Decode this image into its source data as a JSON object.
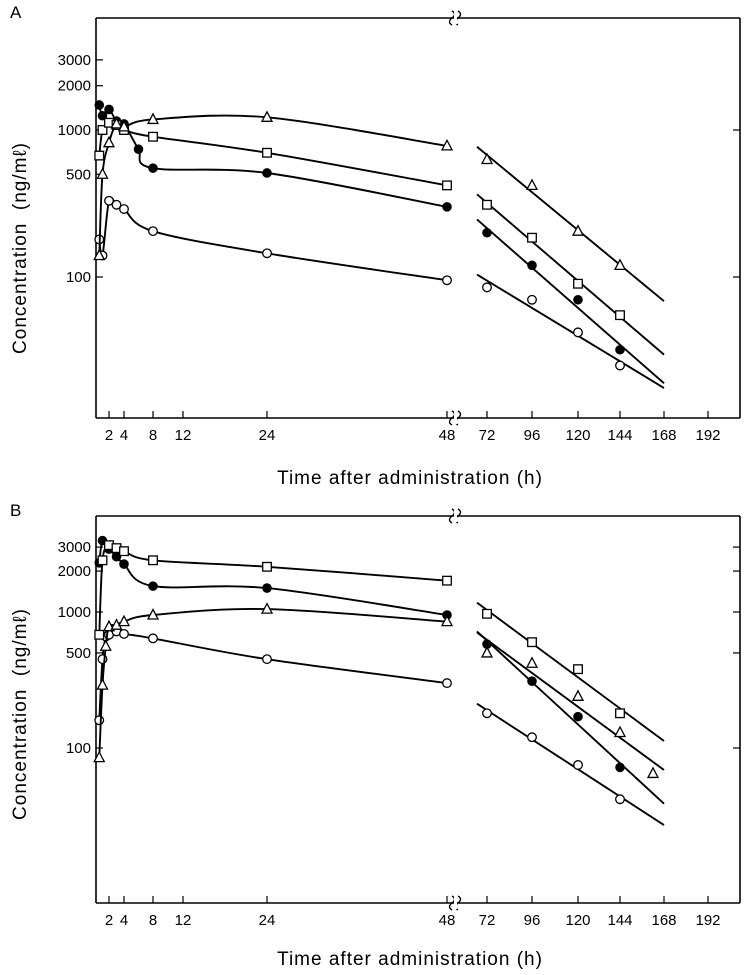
{
  "chart_data": [
    {
      "type": "scatter",
      "panel_label": "A",
      "xlabel": "Time after administration (h)",
      "ylabel": "Concentration  (ng/mℓ)",
      "y_scale": "log",
      "ylim": [
        15,
        6000
      ],
      "y_ticks_left": [
        "3000",
        "2000",
        "1000",
        "500",
        "100"
      ],
      "y_tick_values_left": [
        3000,
        2000,
        1000,
        500,
        100
      ],
      "y_ticks_right": [
        1000,
        100
      ],
      "x_tick_labels": [
        "2",
        "4",
        "8",
        "12",
        "24",
        "48",
        "72",
        "96",
        "120",
        "144",
        "168",
        "192"
      ],
      "x_tick_values": [
        2,
        4,
        8,
        12,
        24,
        48,
        72,
        96,
        120,
        144,
        168,
        192
      ],
      "axis_break": "between 48 and 72 h",
      "series": [
        {
          "marker": "open-circle",
          "points": [
            [
              0.5,
              180
            ],
            [
              1,
              140
            ],
            [
              2,
              330
            ],
            [
              3,
              310
            ],
            [
              4,
              290
            ],
            [
              8,
              205
            ],
            [
              24,
              145
            ],
            [
              48,
              95
            ],
            [
              72,
              85
            ],
            [
              96,
              70
            ],
            [
              120,
              42
            ],
            [
              144,
              25
            ]
          ]
        },
        {
          "marker": "filled-circle",
          "points": [
            [
              0.5,
              1480
            ],
            [
              1,
              1250
            ],
            [
              2,
              1380
            ],
            [
              3,
              1150
            ],
            [
              4,
              1100
            ],
            [
              6,
              740
            ],
            [
              8,
              550
            ],
            [
              24,
              510
            ],
            [
              48,
              300
            ],
            [
              72,
              200
            ],
            [
              96,
              120
            ],
            [
              120,
              70
            ],
            [
              144,
              32
            ]
          ]
        },
        {
          "marker": "open-square",
          "points": [
            [
              0.5,
              670
            ],
            [
              1,
              1000
            ],
            [
              2,
              1120
            ],
            [
              3,
              1080
            ],
            [
              4,
              1000
            ],
            [
              8,
              900
            ],
            [
              24,
              700
            ],
            [
              48,
              420
            ],
            [
              72,
              310
            ],
            [
              96,
              185
            ],
            [
              120,
              90
            ],
            [
              144,
              55
            ]
          ]
        },
        {
          "marker": "open-triangle",
          "points": [
            [
              0.5,
              140
            ],
            [
              1,
              500
            ],
            [
              2,
              820
            ],
            [
              3,
              1100
            ],
            [
              4,
              1050
            ],
            [
              8,
              1180
            ],
            [
              24,
              1220
            ],
            [
              48,
              780
            ],
            [
              72,
              630
            ],
            [
              96,
              420
            ],
            [
              120,
              205
            ],
            [
              144,
              120
            ]
          ]
        }
      ]
    },
    {
      "type": "scatter",
      "panel_label": "B",
      "xlabel": "Time after administration (h)",
      "ylabel": "Concentration  (ng/mℓ)",
      "y_scale": "log",
      "ylim": [
        18,
        4000
      ],
      "y_ticks_left": [
        "3000",
        "2000",
        "1000",
        "500",
        "100"
      ],
      "y_tick_values_left": [
        3000,
        2000,
        1000,
        500,
        100
      ],
      "y_ticks_right": [
        3000,
        2000,
        1000,
        500,
        100
      ],
      "x_tick_labels": [
        "2",
        "4",
        "8",
        "12",
        "24",
        "48",
        "72",
        "96",
        "120",
        "144",
        "168",
        "192"
      ],
      "x_tick_values": [
        2,
        4,
        8,
        12,
        24,
        48,
        72,
        96,
        120,
        144,
        168,
        192
      ],
      "axis_break": "between 48 and 72 h",
      "series": [
        {
          "marker": "open-circle",
          "points": [
            [
              0.5,
              160
            ],
            [
              1,
              450
            ],
            [
              1.5,
              660
            ],
            [
              2,
              680
            ],
            [
              3,
              720
            ],
            [
              4,
              690
            ],
            [
              8,
              640
            ],
            [
              24,
              450
            ],
            [
              48,
              300
            ],
            [
              72,
              180
            ],
            [
              96,
              120
            ],
            [
              120,
              75
            ],
            [
              144,
              42
            ]
          ]
        },
        {
          "marker": "filled-circle",
          "points": [
            [
              0.5,
              2300
            ],
            [
              1,
              3350
            ],
            [
              2,
              2900
            ],
            [
              3,
              2550
            ],
            [
              4,
              2250
            ],
            [
              8,
              1550
            ],
            [
              24,
              1500
            ],
            [
              48,
              950
            ],
            [
              72,
              580
            ],
            [
              96,
              310
            ],
            [
              120,
              170
            ],
            [
              144,
              72
            ]
          ]
        },
        {
          "marker": "open-square",
          "points": [
            [
              0.5,
              680
            ],
            [
              1,
              2400
            ],
            [
              2,
              3100
            ],
            [
              3,
              2950
            ],
            [
              4,
              2800
            ],
            [
              8,
              2400
            ],
            [
              24,
              2150
            ],
            [
              48,
              1700
            ],
            [
              72,
              970
            ],
            [
              96,
              600
            ],
            [
              120,
              380
            ],
            [
              144,
              180
            ]
          ]
        },
        {
          "marker": "open-triangle",
          "points": [
            [
              0.5,
              85
            ],
            [
              1,
              290
            ],
            [
              1.5,
              560
            ],
            [
              2,
              780
            ],
            [
              3,
              800
            ],
            [
              4,
              850
            ],
            [
              8,
              950
            ],
            [
              24,
              1050
            ],
            [
              48,
              850
            ],
            [
              72,
              500
            ],
            [
              96,
              420
            ],
            [
              120,
              240
            ],
            [
              144,
              130
            ],
            [
              162,
              65
            ]
          ]
        }
      ]
    }
  ]
}
